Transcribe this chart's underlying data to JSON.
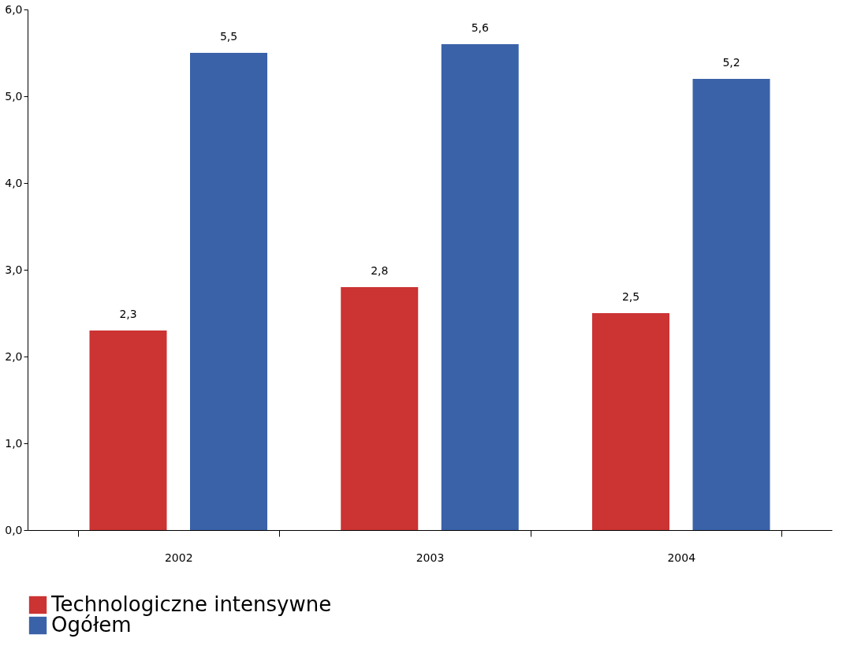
{
  "chart_data": {
    "type": "bar",
    "categories": [
      "2002",
      "2003",
      "2004"
    ],
    "series": [
      {
        "name": "Technologiczne intensywne",
        "color": "#cc3333",
        "values": [
          2.3,
          2.8,
          2.5
        ],
        "value_labels": [
          "2,3",
          "2,8",
          "2,5"
        ]
      },
      {
        "name": "Ogółem",
        "color": "#3a62a8",
        "values": [
          5.5,
          5.6,
          5.2
        ],
        "value_labels": [
          "5,5",
          "5,6",
          "5,2"
        ]
      }
    ],
    "ylim": [
      0,
      6
    ],
    "yticks": [
      {
        "value": 0,
        "label": "0,0"
      },
      {
        "value": 1,
        "label": "1,0"
      },
      {
        "value": 2,
        "label": "2,0"
      },
      {
        "value": 3,
        "label": "3,0"
      },
      {
        "value": 4,
        "label": "4,0"
      },
      {
        "value": 5,
        "label": "5,0"
      },
      {
        "value": 6,
        "label": "6,0"
      }
    ],
    "grid": false,
    "legend": "bottom left"
  }
}
